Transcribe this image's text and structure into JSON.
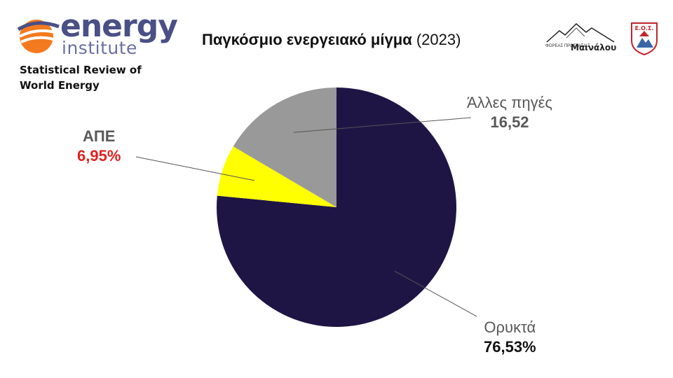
{
  "logo": {
    "brand_line1": "energy",
    "brand_line2": "institute",
    "subtitle": "Statistical Review of World Energy",
    "accent_color": "#f47a20",
    "brand_color": "#4a4f86"
  },
  "title": {
    "bold": "Παγκόσμιο ενεργειακό μίγμα",
    "normal": "(2023)"
  },
  "partners": {
    "left_small_text": "ΦΟΡΕΑΣ ΠΡΟΣΤΑΣΙΑΣ",
    "left_name": "Μαινάλου",
    "right_text": "Ε.Ο.Σ."
  },
  "chart_data": {
    "type": "pie",
    "title": "Παγκόσμιο ενεργειακό μίγμα (2023)",
    "slices": [
      {
        "name": "Ορυκτά",
        "value": 76.53,
        "label_value": "76,53%",
        "color": "#1f1545",
        "value_color": "#111111"
      },
      {
        "name": "ΑΠΕ",
        "value": 6.95,
        "label_value": "6,95%",
        "color": "#ffff00",
        "value_color": "#e02020"
      },
      {
        "name": "Άλλες πηγές",
        "value": 16.52,
        "label_value": "16,52",
        "color": "#999999",
        "value_color": "#595959"
      }
    ],
    "start_angle_deg": 0,
    "direction": "clockwise"
  }
}
